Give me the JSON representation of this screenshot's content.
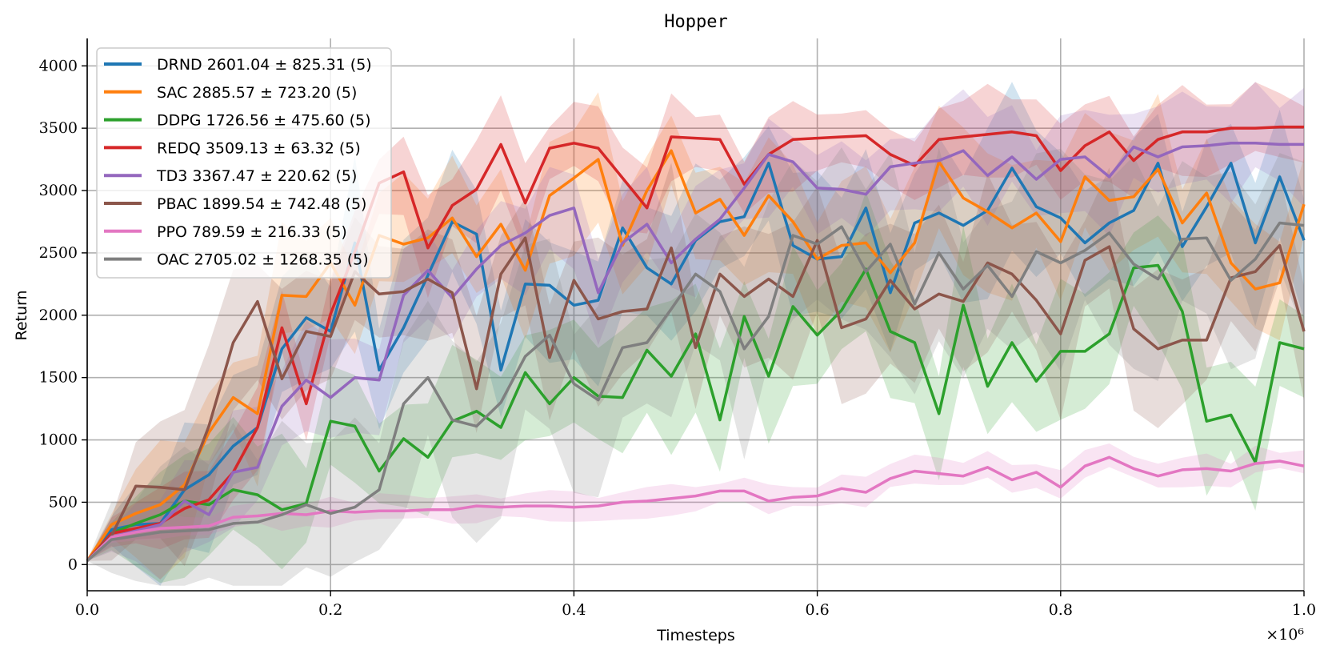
{
  "chart_data": {
    "type": "line",
    "title": "Hopper",
    "xlabel": "Timesteps",
    "ylabel": "Return",
    "x_multiplier_label": "×10⁶",
    "xlim": [
      0,
      1.0
    ],
    "ylim": [
      -210,
      4220
    ],
    "xticks": [
      0.0,
      0.2,
      0.4,
      0.6,
      0.8,
      1.0
    ],
    "xtick_labels": [
      "0.0",
      "0.2",
      "0.4",
      "0.6",
      "0.8",
      "1.0"
    ],
    "yticks": [
      0,
      500,
      1000,
      1500,
      2000,
      2500,
      3000,
      3500,
      4000
    ],
    "ytick_labels": [
      "0",
      "500",
      "1000",
      "1500",
      "2000",
      "2500",
      "3000",
      "3500",
      "4000"
    ],
    "grid": true,
    "legend_position": "top-left",
    "x": [
      0,
      0.02,
      0.04,
      0.06,
      0.08,
      0.1,
      0.12,
      0.14,
      0.16,
      0.18,
      0.2,
      0.22,
      0.24,
      0.26,
      0.28,
      0.3,
      0.32,
      0.34,
      0.36,
      0.38,
      0.4,
      0.42,
      0.44,
      0.46,
      0.48,
      0.5,
      0.52,
      0.54,
      0.56,
      0.58,
      0.6,
      0.62,
      0.64,
      0.66,
      0.68,
      0.7,
      0.72,
      0.74,
      0.76,
      0.78,
      0.8,
      0.82,
      0.84,
      0.86,
      0.88,
      0.9,
      0.92,
      0.94,
      0.96,
      0.98,
      1.0
    ],
    "series": [
      {
        "name": "DRND",
        "legend": "DRND 2601.04 ± 825.31 (5)",
        "color": "#1f77b4",
        "band": 500,
        "values": [
          30,
          280,
          320,
          330,
          600,
          720,
          950,
          1100,
          1730,
          1980,
          1870,
          2580,
          1560,
          1900,
          2320,
          2750,
          2650,
          1560,
          2250,
          2240,
          2080,
          2120,
          2700,
          2380,
          2250,
          2600,
          2750,
          2790,
          3220,
          2560,
          2450,
          2470,
          2860,
          2180,
          2740,
          2820,
          2720,
          2840,
          3180,
          2870,
          2780,
          2580,
          2740,
          2840,
          3220,
          2550,
          2870,
          3220,
          2580,
          3110,
          2600
        ]
      },
      {
        "name": "SAC",
        "legend": "SAC 2885.57 ± 723.20 (5)",
        "color": "#ff7f0e",
        "band": 450,
        "values": [
          30,
          320,
          410,
          480,
          640,
          1060,
          1340,
          1210,
          2160,
          2150,
          2420,
          2080,
          2640,
          2570,
          2620,
          2780,
          2470,
          2730,
          2360,
          2960,
          3100,
          3250,
          2560,
          3000,
          3320,
          2820,
          2930,
          2640,
          2960,
          2750,
          2450,
          2560,
          2580,
          2340,
          2580,
          3230,
          2940,
          2830,
          2700,
          2820,
          2590,
          3110,
          2920,
          2950,
          3170,
          2740,
          2980,
          2420,
          2210,
          2260,
          2890
        ]
      },
      {
        "name": "DDPG",
        "legend": "DDPG 1726.56 ± 475.60 (5)",
        "color": "#2ca02c",
        "band": 450,
        "values": [
          30,
          250,
          330,
          400,
          510,
          480,
          600,
          560,
          440,
          490,
          1150,
          1110,
          750,
          1010,
          860,
          1150,
          1230,
          1100,
          1540,
          1290,
          1500,
          1350,
          1340,
          1720,
          1510,
          1850,
          1160,
          1990,
          1510,
          2070,
          1840,
          2040,
          2370,
          1870,
          1780,
          1210,
          2080,
          1430,
          1780,
          1470,
          1710,
          1710,
          1850,
          2380,
          2400,
          2030,
          1150,
          1200,
          820,
          1780,
          1730
        ]
      },
      {
        "name": "REDQ",
        "legend": "REDQ 3509.13 ± 63.32 (5)",
        "color": "#d62728",
        "band": 300,
        "values": [
          30,
          250,
          290,
          330,
          450,
          520,
          740,
          1100,
          1900,
          1290,
          2010,
          2510,
          3060,
          3150,
          2540,
          2880,
          3010,
          3370,
          2900,
          3340,
          3380,
          3340,
          3100,
          2860,
          3430,
          3420,
          3410,
          3050,
          3290,
          3410,
          3420,
          3430,
          3440,
          3290,
          3200,
          3410,
          3430,
          3450,
          3470,
          3440,
          3160,
          3360,
          3470,
          3240,
          3410,
          3470,
          3470,
          3500,
          3500,
          3510,
          3510
        ]
      },
      {
        "name": "TD3",
        "legend": "TD3 3367.47 ± 220.62 (5)",
        "color": "#9467bd",
        "band": 350,
        "values": [
          30,
          220,
          270,
          320,
          510,
          400,
          740,
          780,
          1270,
          1480,
          1340,
          1500,
          1480,
          2160,
          2360,
          2140,
          2370,
          2560,
          2660,
          2800,
          2860,
          2180,
          2580,
          2730,
          2420,
          2610,
          2770,
          3020,
          3290,
          3230,
          3020,
          3010,
          2970,
          3190,
          3220,
          3240,
          3320,
          3120,
          3270,
          3090,
          3250,
          3270,
          3110,
          3350,
          3270,
          3350,
          3360,
          3380,
          3380,
          3370,
          3370
        ]
      },
      {
        "name": "PBAC",
        "legend": "PBAC 1899.54 ± 742.48 (5)",
        "color": "#8c564b",
        "band": 500,
        "values": [
          30,
          230,
          630,
          620,
          600,
          1110,
          1780,
          2110,
          1490,
          1870,
          1830,
          2350,
          2170,
          2190,
          2290,
          2180,
          1410,
          2330,
          2620,
          1660,
          2280,
          1970,
          2030,
          2050,
          2540,
          1740,
          2330,
          2150,
          2290,
          2150,
          2600,
          1900,
          1970,
          2280,
          2050,
          2170,
          2110,
          2420,
          2330,
          2120,
          1850,
          2440,
          2550,
          1890,
          1730,
          1800,
          1800,
          2300,
          2350,
          2560,
          1870
        ]
      },
      {
        "name": "PPO",
        "legend": "PPO 789.59 ± 216.33 (5)",
        "color": "#e377c2",
        "band": 100,
        "values": [
          30,
          220,
          260,
          290,
          300,
          310,
          380,
          390,
          410,
          400,
          430,
          420,
          430,
          430,
          440,
          440,
          470,
          460,
          470,
          470,
          460,
          470,
          500,
          510,
          530,
          550,
          590,
          590,
          510,
          540,
          550,
          610,
          580,
          690,
          750,
          730,
          710,
          780,
          680,
          740,
          620,
          790,
          860,
          770,
          710,
          760,
          770,
          750,
          810,
          830,
          790
        ]
      },
      {
        "name": "OAC",
        "legend": "OAC 2705.02 ± 1268.35 (5)",
        "color": "#7f7f7f",
        "band": 650,
        "values": [
          30,
          200,
          230,
          260,
          270,
          280,
          330,
          340,
          400,
          480,
          410,
          460,
          600,
          1290,
          1500,
          1160,
          1110,
          1300,
          1670,
          1840,
          1450,
          1320,
          1740,
          1780,
          2050,
          2330,
          2190,
          1730,
          1990,
          2640,
          2570,
          2710,
          2350,
          2570,
          2090,
          2500,
          2210,
          2400,
          2150,
          2510,
          2420,
          2520,
          2660,
          2410,
          2290,
          2610,
          2620,
          2280,
          2450,
          2740,
          2720
        ]
      }
    ]
  }
}
